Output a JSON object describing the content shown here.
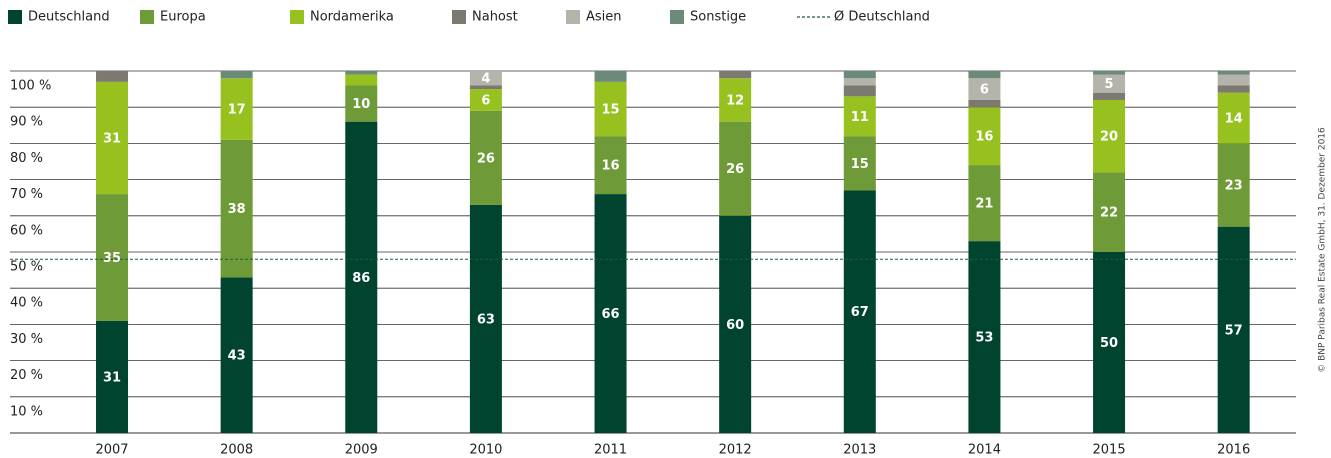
{
  "chart_data": {
    "type": "stacked_bar",
    "categories": [
      "2007",
      "2008",
      "2009",
      "2010",
      "2011",
      "2012",
      "2013",
      "2014",
      "2015",
      "2016"
    ],
    "series": [
      {
        "name": "Deutschland",
        "color": "#00432f",
        "values": [
          31,
          43,
          86,
          63,
          66,
          60,
          67,
          53,
          50,
          57
        ]
      },
      {
        "name": "Europa",
        "color": "#6e9a37",
        "values": [
          35,
          38,
          10,
          26,
          16,
          26,
          15,
          21,
          22,
          23
        ]
      },
      {
        "name": "Nordamerika",
        "color": "#96c11f",
        "values": [
          31,
          17,
          3,
          6,
          15,
          12,
          11,
          16,
          20,
          14
        ]
      },
      {
        "name": "Nahost",
        "color": "#7c7a70",
        "values": [
          3,
          0,
          0,
          1,
          0,
          2,
          3,
          2,
          2,
          2
        ]
      },
      {
        "name": "Asien",
        "color": "#b5b4ab",
        "values": [
          0,
          0,
          0,
          4,
          0,
          0,
          2,
          6,
          5,
          3
        ]
      },
      {
        "name": "Sonstige",
        "color": "#6b8a7a",
        "values": [
          0,
          2,
          1,
          0,
          3,
          0,
          2,
          2,
          1,
          1
        ]
      }
    ],
    "average": {
      "name": "Ø Deutschland",
      "value": 48,
      "color": "#1f5a45"
    },
    "ylim": [
      0,
      100
    ],
    "yticks": [
      {
        "value": 10,
        "label": "10 %"
      },
      {
        "value": 20,
        "label": "20 %"
      },
      {
        "value": 30,
        "label": "30 %"
      },
      {
        "value": 40,
        "label": "40 %"
      },
      {
        "value": 50,
        "label": "50 %"
      },
      {
        "value": 60,
        "label": "60 %"
      },
      {
        "value": 70,
        "label": "70 %"
      },
      {
        "value": 80,
        "label": "80 %"
      },
      {
        "value": 90,
        "label": "90 %"
      },
      {
        "value": 100,
        "label": "100 %"
      }
    ],
    "grid": true,
    "source": "© BNP Paribas Real Estate GmbH, 31. Dezember 2016"
  }
}
